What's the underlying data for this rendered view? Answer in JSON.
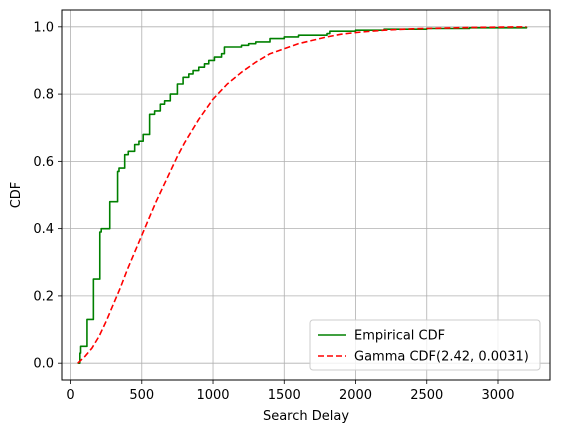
{
  "chart_data": {
    "type": "line",
    "xlabel": "Search Delay",
    "ylabel": "CDF",
    "xlim": [
      -60,
      3365
    ],
    "ylim": [
      -0.05,
      1.05
    ],
    "x_ticks": [
      0,
      500,
      1000,
      1500,
      2000,
      2500,
      3000
    ],
    "y_ticks": [
      0.0,
      0.2,
      0.4,
      0.6,
      0.8,
      1.0
    ],
    "y_tick_labels": [
      "0.0",
      "0.2",
      "0.4",
      "0.6",
      "0.8",
      "1.0"
    ],
    "grid": true,
    "legend_position": "lower-right",
    "series": [
      {
        "name": "Empirical CDF",
        "style": "step",
        "color": "#008000",
        "dash": "solid",
        "points": [
          [
            50,
            0.0
          ],
          [
            65,
            0.03
          ],
          [
            70,
            0.05
          ],
          [
            110,
            0.05
          ],
          [
            115,
            0.13
          ],
          [
            155,
            0.13
          ],
          [
            160,
            0.25
          ],
          [
            200,
            0.25
          ],
          [
            205,
            0.39
          ],
          [
            215,
            0.4
          ],
          [
            265,
            0.4
          ],
          [
            275,
            0.48
          ],
          [
            320,
            0.48
          ],
          [
            330,
            0.57
          ],
          [
            340,
            0.58
          ],
          [
            370,
            0.58
          ],
          [
            380,
            0.62
          ],
          [
            405,
            0.63
          ],
          [
            440,
            0.63
          ],
          [
            450,
            0.65
          ],
          [
            480,
            0.66
          ],
          [
            510,
            0.68
          ],
          [
            545,
            0.68
          ],
          [
            555,
            0.74
          ],
          [
            590,
            0.75
          ],
          [
            620,
            0.75
          ],
          [
            630,
            0.77
          ],
          [
            660,
            0.78
          ],
          [
            700,
            0.8
          ],
          [
            740,
            0.8
          ],
          [
            750,
            0.83
          ],
          [
            790,
            0.85
          ],
          [
            830,
            0.86
          ],
          [
            860,
            0.87
          ],
          [
            900,
            0.88
          ],
          [
            940,
            0.89
          ],
          [
            970,
            0.9
          ],
          [
            990,
            0.9
          ],
          [
            1010,
            0.91
          ],
          [
            1060,
            0.92
          ],
          [
            1080,
            0.94
          ],
          [
            1200,
            0.945
          ],
          [
            1250,
            0.95
          ],
          [
            1300,
            0.955
          ],
          [
            1400,
            0.965
          ],
          [
            1500,
            0.97
          ],
          [
            1600,
            0.975
          ],
          [
            1800,
            0.98
          ],
          [
            1820,
            0.987
          ],
          [
            2000,
            0.99
          ],
          [
            2200,
            0.993
          ],
          [
            2500,
            0.995
          ],
          [
            2800,
            0.997
          ],
          [
            3200,
            1.0
          ]
        ]
      },
      {
        "name": "Gamma CDF(2.42, 0.0031)",
        "style": "line",
        "color": "#ff0000",
        "dash": "dashed",
        "points": [
          [
            50,
            0.0
          ],
          [
            100,
            0.02
          ],
          [
            150,
            0.045
          ],
          [
            200,
            0.08
          ],
          [
            250,
            0.125
          ],
          [
            300,
            0.175
          ],
          [
            350,
            0.225
          ],
          [
            400,
            0.28
          ],
          [
            450,
            0.33
          ],
          [
            500,
            0.38
          ],
          [
            550,
            0.43
          ],
          [
            600,
            0.48
          ],
          [
            650,
            0.525
          ],
          [
            700,
            0.57
          ],
          [
            750,
            0.615
          ],
          [
            800,
            0.655
          ],
          [
            850,
            0.69
          ],
          [
            900,
            0.725
          ],
          [
            950,
            0.755
          ],
          [
            1000,
            0.785
          ],
          [
            1100,
            0.83
          ],
          [
            1200,
            0.865
          ],
          [
            1300,
            0.895
          ],
          [
            1400,
            0.92
          ],
          [
            1500,
            0.935
          ],
          [
            1600,
            0.95
          ],
          [
            1700,
            0.96
          ],
          [
            1800,
            0.97
          ],
          [
            1900,
            0.978
          ],
          [
            2000,
            0.983
          ],
          [
            2200,
            0.99
          ],
          [
            2400,
            0.994
          ],
          [
            2600,
            0.996
          ],
          [
            2800,
            0.998
          ],
          [
            3000,
            0.999
          ],
          [
            3200,
            1.0
          ]
        ]
      }
    ]
  }
}
